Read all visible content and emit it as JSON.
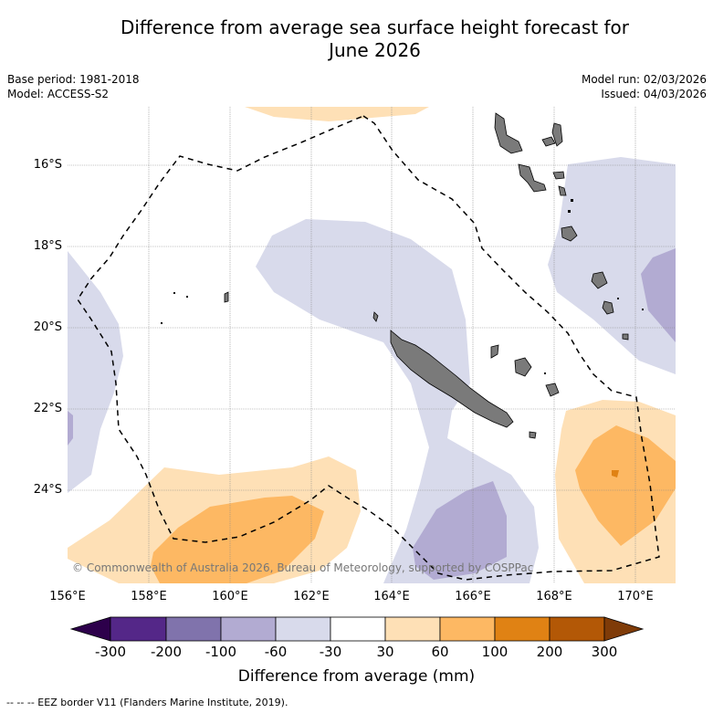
{
  "title_line1": "Difference from average sea surface height forecast for",
  "title_line2": "June 2026",
  "base_period": "Base period: 1981-2018",
  "model": "Model: ACCESS-S2",
  "model_run": "Model run: 02/03/2026",
  "issued": "Issued: 04/03/2026",
  "lat_ticks": [
    "16°S",
    "18°S",
    "20°S",
    "22°S",
    "24°S"
  ],
  "lon_ticks": [
    "156°E",
    "158°E",
    "160°E",
    "162°E",
    "164°E",
    "166°E",
    "168°E",
    "170°E"
  ],
  "colorbar": {
    "labels": [
      "-300",
      "-200",
      "-100",
      "-60",
      "-30",
      "30",
      "60",
      "100",
      "200",
      "300"
    ],
    "colors": [
      "#2d004b",
      "#542788",
      "#8073ac",
      "#b2abd2",
      "#d8daeb",
      "#ffffff",
      "#fee0b6",
      "#fdb863",
      "#e08214",
      "#b35806",
      "#7f3b08"
    ],
    "title": "Difference from average (mm)"
  },
  "copyright": "© Commonwealth of Australia 2026, Bureau of Meteorology, supported by COSPPac",
  "footer": "-- -- -- EEZ border V11 (Flanders Marine Institute, 2019)."
}
